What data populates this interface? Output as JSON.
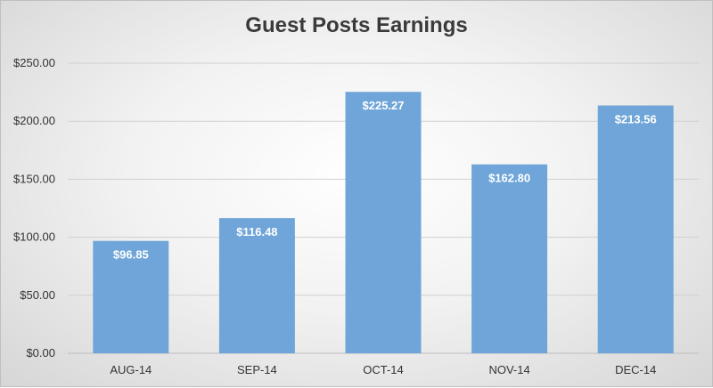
{
  "chart_data": {
    "type": "bar",
    "title": "Guest Posts Earnings",
    "categories": [
      "AUG-14",
      "SEP-14",
      "OCT-14",
      "NOV-14",
      "DEC-14"
    ],
    "values": [
      96.85,
      116.48,
      225.27,
      162.8,
      213.56
    ],
    "data_labels": [
      "$96.85",
      "$116.48",
      "$225.27",
      "$162.80",
      "$213.56"
    ],
    "y_ticks": [
      "$0.00",
      "$50.00",
      "$100.00",
      "$150.00",
      "$200.00",
      "$250.00"
    ],
    "y_tick_values": [
      0,
      50,
      100,
      150,
      200,
      250
    ],
    "ylim": [
      0,
      250
    ],
    "grid": true,
    "legend": "none",
    "bar_color": "#6fa5d8"
  }
}
